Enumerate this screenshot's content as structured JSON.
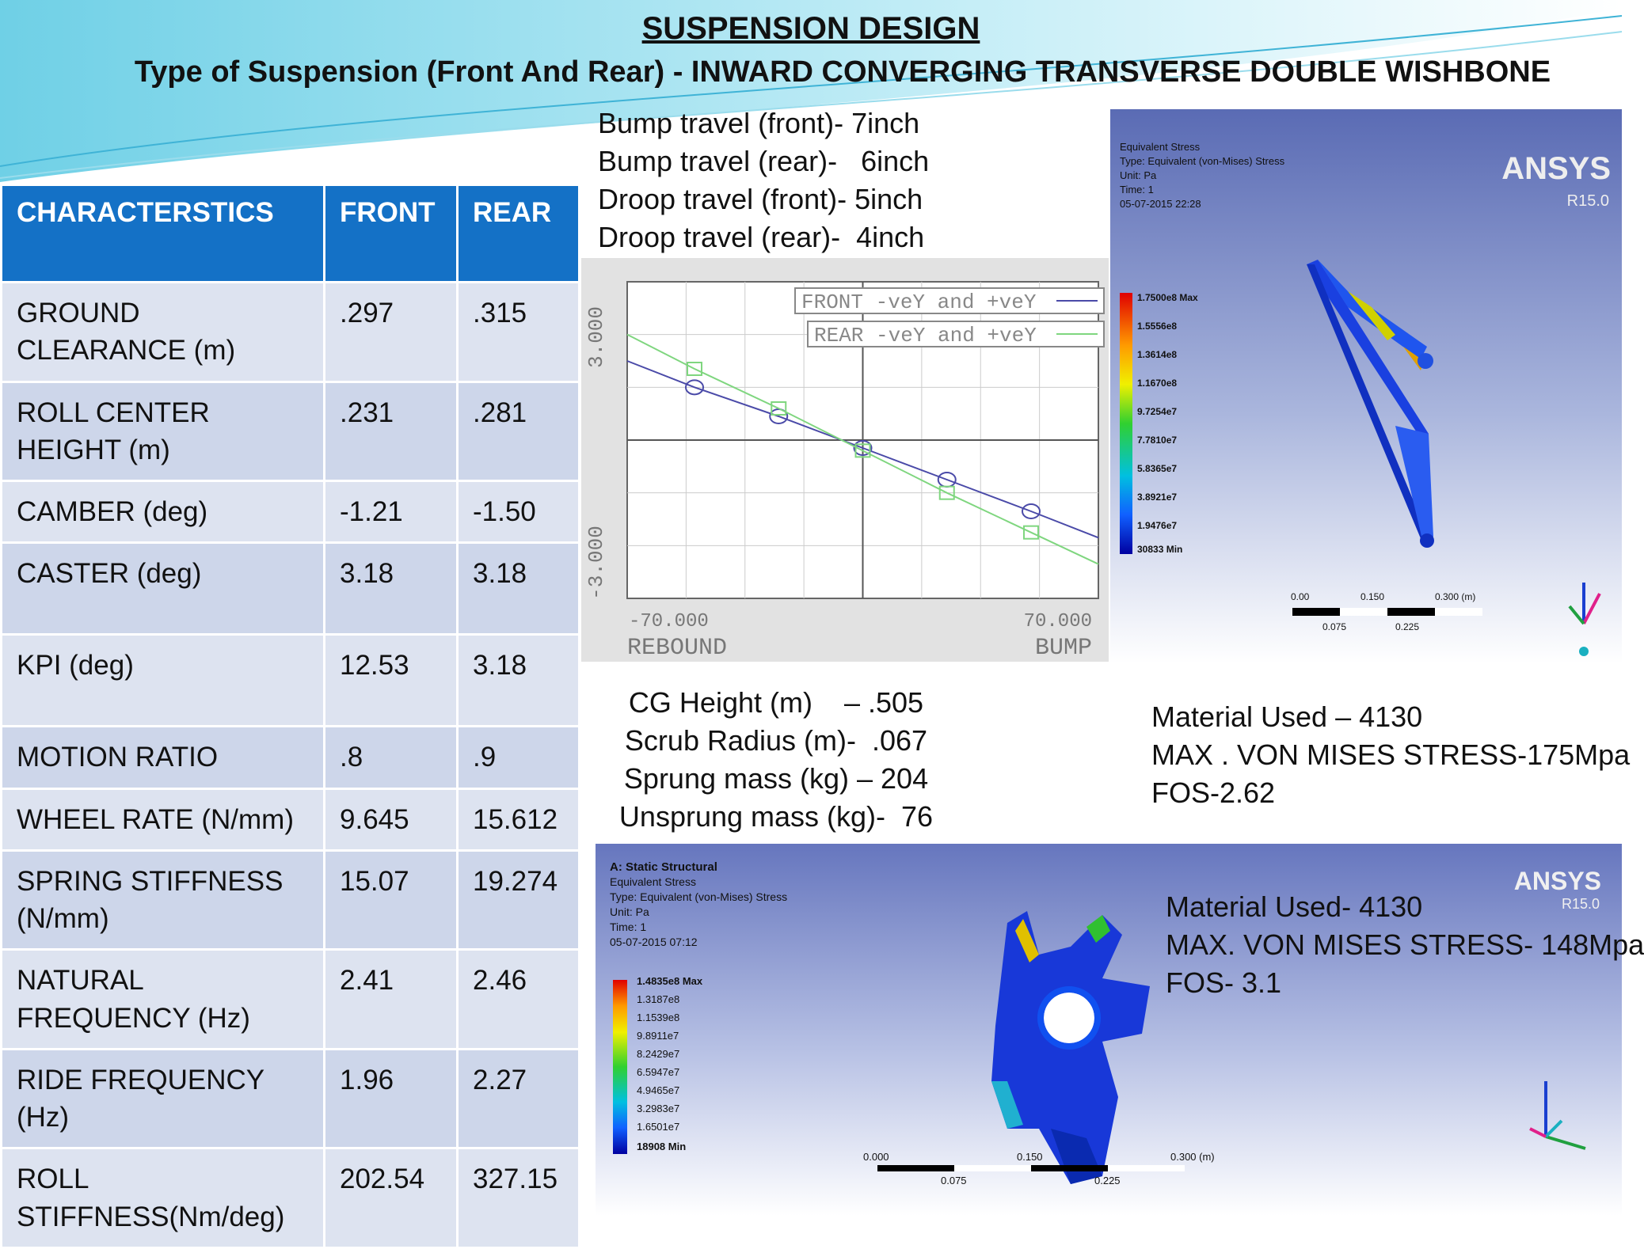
{
  "header": {
    "title": "SUSPENSION DESIGN",
    "subtitle": "Type of Suspension (Front And Rear) -  INWARD CONVERGING  TRANSVERSE DOUBLE WISHBONE"
  },
  "table": {
    "headers": [
      "CHARACTERSTICS",
      "FRONT",
      "REAR"
    ],
    "rows": [
      {
        "name": "GROUND CLEARANCE (m)",
        "front": ".297",
        "rear": ".315"
      },
      {
        "name": "ROLL CENTER HEIGHT (m)",
        "front": ".231",
        "rear": ".281"
      },
      {
        "name": "CAMBER (deg)",
        "front": "-1.21",
        "rear": "-1.50"
      },
      {
        "name": "CASTER (deg)",
        "front": "3.18",
        "rear": "3.18"
      },
      {
        "name": "KPI (deg)",
        "front": "12.53",
        "rear": "3.18"
      },
      {
        "name": "MOTION  RATIO",
        "front": ".8",
        "rear": ".9"
      },
      {
        "name": "WHEEL RATE (N/mm)",
        "front": "9.645",
        "rear": "15.612"
      },
      {
        "name": "SPRING STIFFNESS (N/mm)",
        "front": "15.07",
        "rear": "19.274"
      },
      {
        "name": "NATURAL FREQUENCY (Hz)",
        "front": "2.41",
        "rear": "2.46"
      },
      {
        "name": "RIDE FREQUENCY (Hz)",
        "front": " 1.96",
        "rear": "2.27"
      },
      {
        "name": "ROLL STIFFNESS(Nm/deg)",
        "front": "202.54",
        "rear": "327.15"
      }
    ]
  },
  "travel": {
    "bump_front": "Bump travel (front)- 7inch",
    "bump_rear": "Bump travel (rear)-   6inch",
    "droop_front": "Droop travel (front)- 5inch",
    "droop_rear": "Droop travel (rear)-  4inch"
  },
  "plot": {
    "legend_front": "FRONT -veY and +veY",
    "legend_rear": "REAR -veY and +veY",
    "y_max_label": "3.000",
    "y_min_label": "-3.000",
    "x_min_label": "-70.000",
    "x_max_label": "70.000",
    "x_left_caption": "REBOUND",
    "x_right_caption": "BUMP",
    "front_line_color": "#4a4aa8",
    "rear_line_color": "#7fd67f"
  },
  "chart_data": {
    "type": "line",
    "x_range": [
      -70,
      70
    ],
    "y_range": [
      -3,
      3
    ],
    "grid": true,
    "series": [
      {
        "name": "FRONT -veY and +veY",
        "x": [
          -70,
          -50,
          -25,
          0,
          25,
          50,
          70
        ],
        "y": [
          1.5,
          1.0,
          0.45,
          -0.15,
          -0.75,
          -1.35,
          -1.85
        ]
      },
      {
        "name": "REAR -veY and +veY",
        "x": [
          -70,
          -50,
          -25,
          0,
          25,
          50,
          70
        ],
        "y": [
          2.0,
          1.35,
          0.6,
          -0.2,
          -1.0,
          -1.75,
          -2.35
        ]
      }
    ]
  },
  "mass": {
    "cg": "CG Height (m)    – .505",
    "scrub": "Scrub Radius (m)-  .067",
    "sprung": "Sprung mass (kg) – 204",
    "unsprung": "Unsprung mass (kg)-  76"
  },
  "material_wishbone": {
    "material": "Material Used – 4130",
    "stress": "MAX . VON MISES STRESS-175Mpa",
    "fos": "FOS-2.62"
  },
  "sim1": {
    "brand": "ANSYS",
    "version": "R15.0",
    "info": [
      "Equivalent Stress",
      "Type: Equivalent (von-Mises) Stress",
      "Unit: Pa",
      "Time: 1",
      "05-07-2015 22:28"
    ],
    "legend": [
      "1.7500e8 Max",
      "1.5556e8",
      "1.3614e8",
      "1.1670e8",
      "9.7254e7",
      "7.7810e7",
      "5.8365e7",
      "3.8921e7",
      "1.9476e7",
      "30833 Min"
    ],
    "scale_top": [
      "0.00",
      "0.150",
      "0.300 (m)"
    ],
    "scale_bottom": [
      "0.075",
      "0.225"
    ]
  },
  "sim2": {
    "brand": "ANSYS",
    "version": "R15.0",
    "info": [
      "A: Static Structural",
      "Equivalent Stress",
      "Type: Equivalent (von-Mises) Stress",
      "Unit: Pa",
      "Time: 1",
      "05-07-2015 07:12"
    ],
    "legend": [
      "1.4835e8 Max",
      "1.3187e8",
      "1.1539e8",
      "9.8911e7",
      "8.2429e7",
      "6.5947e7",
      "4.9465e7",
      "3.2983e7",
      "1.6501e7",
      "18908 Min"
    ],
    "scale_top": [
      "0.000",
      "0.150",
      "0.300 (m)"
    ],
    "scale_bottom": [
      "0.075",
      "0.225"
    ]
  },
  "material_knuckle": {
    "material": "Material Used- 4130",
    "stress": "MAX. VON MISES STRESS- 148Mpa",
    "fos": "FOS- 3.1"
  },
  "colors": {
    "table_header": "#1471c6",
    "row_light": "#dde3f0",
    "row_dark": "#cdd6ea",
    "swoosh": "#5cc3de"
  }
}
